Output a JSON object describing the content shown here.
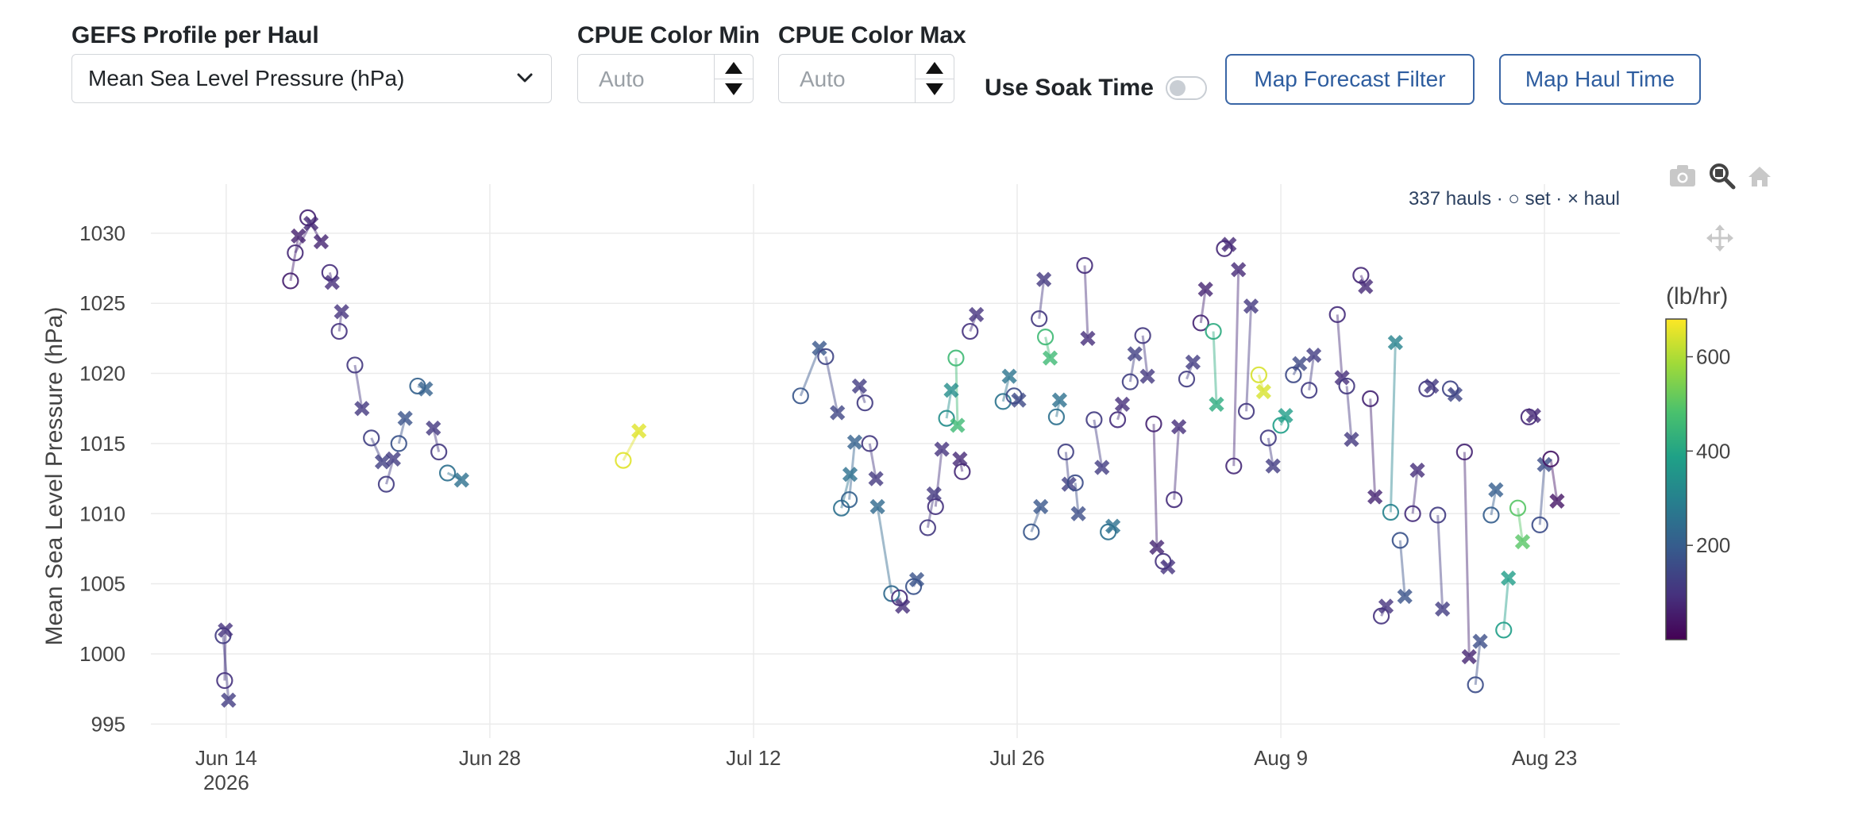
{
  "controls": {
    "profile_label": "GEFS Profile per Haul",
    "profile_value": "Mean Sea Level Pressure (hPa)",
    "cpue_min_label": "CPUE Color Min",
    "cpue_min_placeholder": "Auto",
    "cpue_max_label": "CPUE Color Max",
    "cpue_max_placeholder": "Auto",
    "soak_label": "Use Soak Time",
    "soak_on": false,
    "btn_forecast": "Map Forecast Filter",
    "btn_haul": "Map Haul Time"
  },
  "toolbar_icons": [
    "camera-icon",
    "zoom-icon",
    "home-icon",
    "pan-icon"
  ],
  "chart_data": {
    "type": "scatter",
    "annotation": "337 hauls · ○ set · × haul",
    "ylabel": "Mean Sea Level Pressure (hPa)",
    "xlabel": "",
    "ylim": [
      994,
      1033.5
    ],
    "xlim": [
      "2026-06-10",
      "2026-08-27"
    ],
    "x_ticks": [
      {
        "date": "2026-06-14",
        "label": "Jun 14",
        "sub": "2026"
      },
      {
        "date": "2026-06-28",
        "label": "Jun 28",
        "sub": ""
      },
      {
        "date": "2026-07-12",
        "label": "Jul 12",
        "sub": ""
      },
      {
        "date": "2026-07-26",
        "label": "Jul 26",
        "sub": ""
      },
      {
        "date": "2026-08-09",
        "label": "Aug 9",
        "sub": ""
      },
      {
        "date": "2026-08-23",
        "label": "Aug 23",
        "sub": ""
      }
    ],
    "y_ticks": [
      995,
      1000,
      1005,
      1010,
      1015,
      1020,
      1025,
      1030
    ],
    "grid": true,
    "colorbar": {
      "title": "(lb/hr)",
      "min": 0,
      "max": 680,
      "ticks": [
        200,
        400,
        600
      ],
      "colorscale": "viridis"
    },
    "marker_legend": {
      "set": "circle",
      "haul": "x"
    },
    "series": [
      {
        "set": [
          "2026-06-13T20:00",
          1001.3
        ],
        "haul": [
          "2026-06-14T03:00",
          996.7
        ],
        "cpue": 120
      },
      {
        "set": [
          "2026-06-13T22:00",
          998.1
        ],
        "haul": [
          "2026-06-13T23:00",
          1001.7
        ],
        "cpue": 100
      },
      {
        "set": [
          "2026-06-17T10:00",
          1026.6
        ],
        "haul": [
          "2026-06-17T20:00",
          1029.8
        ],
        "cpue": 60
      },
      {
        "set": [
          "2026-06-17T16:00",
          1028.6
        ],
        "haul": [
          "2026-06-18T12:00",
          1030.7
        ],
        "cpue": 80
      },
      {
        "set": [
          "2026-06-18T08:00",
          1031.1
        ],
        "haul": [
          "2026-06-19T01:00",
          1029.4
        ],
        "cpue": 70
      },
      {
        "set": [
          "2026-06-19T12:00",
          1027.2
        ],
        "haul": [
          "2026-06-19T15:00",
          1026.5
        ],
        "cpue": 90
      },
      {
        "set": [
          "2026-06-20T00:00",
          1023.0
        ],
        "haul": [
          "2026-06-20T03:00",
          1024.4
        ],
        "cpue": 100
      },
      {
        "set": [
          "2026-06-20T20:00",
          1020.6
        ],
        "haul": [
          "2026-06-21T05:00",
          1017.5
        ],
        "cpue": 110
      },
      {
        "set": [
          "2026-06-21T17:00",
          1015.4
        ],
        "haul": [
          "2026-06-22T07:00",
          1013.7
        ],
        "cpue": 130
      },
      {
        "set": [
          "2026-06-22T12:00",
          1012.1
        ],
        "haul": [
          "2026-06-22T21:00",
          1013.9
        ],
        "cpue": 120
      },
      {
        "set": [
          "2026-06-23T04:00",
          1015.0
        ],
        "haul": [
          "2026-06-23T12:00",
          1016.8
        ],
        "cpue": 170
      },
      {
        "set": [
          "2026-06-24T04:00",
          1019.1
        ],
        "haul": [
          "2026-06-24T14:00",
          1018.9
        ],
        "cpue": 210
      },
      {
        "set": [
          "2026-06-25T07:00",
          1014.4
        ],
        "haul": [
          "2026-06-25T00:00",
          1016.1
        ],
        "cpue": 110
      },
      {
        "set": [
          "2026-06-25T18:00",
          1012.9
        ],
        "haul": [
          "2026-06-26T12:00",
          1012.4
        ],
        "cpue": 250
      },
      {
        "set": [
          "2026-07-05T02:00",
          1013.8
        ],
        "haul": [
          "2026-07-05T22:00",
          1015.9
        ],
        "cpue": 650
      },
      {
        "set": [
          "2026-07-14T12:00",
          1018.4
        ],
        "haul": [
          "2026-07-15T12:00",
          1021.8
        ],
        "cpue": 180
      },
      {
        "set": [
          "2026-07-15T20:00",
          1021.2
        ],
        "haul": [
          "2026-07-16T11:00",
          1017.2
        ],
        "cpue": 140
      },
      {
        "set": [
          "2026-07-16T16:00",
          1010.4
        ],
        "haul": [
          "2026-07-17T03:00",
          1012.8
        ],
        "cpue": 250
      },
      {
        "set": [
          "2026-07-17T02:00",
          1011.0
        ],
        "haul": [
          "2026-07-17T09:00",
          1015.1
        ],
        "cpue": 210
      },
      {
        "set": [
          "2026-07-17T22:00",
          1017.9
        ],
        "haul": [
          "2026-07-17T15:00",
          1019.1
        ],
        "cpue": 120
      },
      {
        "set": [
          "2026-07-18T04:00",
          1015.0
        ],
        "haul": [
          "2026-07-18T12:00",
          1012.5
        ],
        "cpue": 110
      },
      {
        "set": [
          "2026-07-19T08:00",
          1004.3
        ],
        "haul": [
          "2026-07-18T14:00",
          1010.5
        ],
        "cpue": 230
      },
      {
        "set": [
          "2026-07-19T18:00",
          1004.0
        ],
        "haul": [
          "2026-07-19T22:00",
          1003.4
        ],
        "cpue": 90
      },
      {
        "set": [
          "2026-07-20T12:00",
          1004.8
        ],
        "haul": [
          "2026-07-20T16:00",
          1005.3
        ],
        "cpue": 170
      },
      {
        "set": [
          "2026-07-21T06:00",
          1009.0
        ],
        "haul": [
          "2026-07-21T14:00",
          1011.4
        ],
        "cpue": 110
      },
      {
        "set": [
          "2026-07-21T16:00",
          1010.5
        ],
        "haul": [
          "2026-07-22T00:00",
          1014.6
        ],
        "cpue": 100
      },
      {
        "set": [
          "2026-07-22T06:00",
          1016.8
        ],
        "haul": [
          "2026-07-22T12:00",
          1018.8
        ],
        "cpue": 330
      },
      {
        "set": [
          "2026-07-22T18:00",
          1021.1
        ],
        "haul": [
          "2026-07-22T20:00",
          1016.3
        ],
        "cpue": 460
      },
      {
        "set": [
          "2026-07-23T02:00",
          1013.0
        ],
        "haul": [
          "2026-07-22T23:00",
          1013.9
        ],
        "cpue": 80
      },
      {
        "set": [
          "2026-07-23T12:00",
          1023.0
        ],
        "haul": [
          "2026-07-23T20:00",
          1024.2
        ],
        "cpue": 100
      },
      {
        "set": [
          "2026-07-25T06:00",
          1018.0
        ],
        "haul": [
          "2026-07-25T14:00",
          1019.8
        ],
        "cpue": 260
      },
      {
        "set": [
          "2026-07-25T20:00",
          1018.4
        ],
        "haul": [
          "2026-07-26T02:00",
          1018.1
        ],
        "cpue": 150
      },
      {
        "set": [
          "2026-07-26T18:00",
          1008.7
        ],
        "haul": [
          "2026-07-27T06:00",
          1010.5
        ],
        "cpue": 180
      },
      {
        "set": [
          "2026-07-27T04:00",
          1023.9
        ],
        "haul": [
          "2026-07-27T10:00",
          1026.7
        ],
        "cpue": 110
      },
      {
        "set": [
          "2026-07-27T12:00",
          1022.6
        ],
        "haul": [
          "2026-07-27T18:00",
          1021.1
        ],
        "cpue": 460
      },
      {
        "set": [
          "2026-07-28T02:00",
          1016.9
        ],
        "haul": [
          "2026-07-28T06:00",
          1018.1
        ],
        "cpue": 250
      },
      {
        "set": [
          "2026-07-28T14:00",
          1014.4
        ],
        "haul": [
          "2026-07-28T18:00",
          1012.1
        ],
        "cpue": 130
      },
      {
        "set": [
          "2026-07-29T02:00",
          1012.2
        ],
        "haul": [
          "2026-07-29T06:00",
          1010.0
        ],
        "cpue": 160
      },
      {
        "set": [
          "2026-07-29T14:00",
          1027.7
        ],
        "haul": [
          "2026-07-29T18:00",
          1022.5
        ],
        "cpue": 90
      },
      {
        "set": [
          "2026-07-30T02:00",
          1016.7
        ],
        "haul": [
          "2026-07-30T12:00",
          1013.3
        ],
        "cpue": 120
      },
      {
        "set": [
          "2026-07-30T20:00",
          1008.7
        ],
        "haul": [
          "2026-07-31T02:00",
          1009.1
        ],
        "cpue": 250
      },
      {
        "set": [
          "2026-07-31T08:00",
          1016.7
        ],
        "haul": [
          "2026-07-31T14:00",
          1017.8
        ],
        "cpue": 90
      },
      {
        "set": [
          "2026-08-01T00:00",
          1019.4
        ],
        "haul": [
          "2026-08-01T06:00",
          1021.4
        ],
        "cpue": 130
      },
      {
        "set": [
          "2026-08-01T16:00",
          1022.7
        ],
        "haul": [
          "2026-08-01T22:00",
          1019.8
        ],
        "cpue": 110
      },
      {
        "set": [
          "2026-08-02T06:00",
          1016.4
        ],
        "haul": [
          "2026-08-02T10:00",
          1007.6
        ],
        "cpue": 70
      },
      {
        "set": [
          "2026-08-02T18:00",
          1006.6
        ],
        "haul": [
          "2026-08-03T00:00",
          1006.2
        ],
        "cpue": 100
      },
      {
        "set": [
          "2026-08-03T08:00",
          1011.0
        ],
        "haul": [
          "2026-08-03T14:00",
          1016.2
        ],
        "cpue": 90
      },
      {
        "set": [
          "2026-08-04T00:00",
          1019.6
        ],
        "haul": [
          "2026-08-04T08:00",
          1020.8
        ],
        "cpue": 120
      },
      {
        "set": [
          "2026-08-04T18:00",
          1023.6
        ],
        "haul": [
          "2026-08-05T00:00",
          1026.0
        ],
        "cpue": 70
      },
      {
        "set": [
          "2026-08-05T10:00",
          1023.0
        ],
        "haul": [
          "2026-08-05T14:00",
          1017.8
        ],
        "cpue": 420
      },
      {
        "set": [
          "2026-08-06T00:00",
          1028.9
        ],
        "haul": [
          "2026-08-06T06:00",
          1029.2
        ],
        "cpue": 80
      },
      {
        "set": [
          "2026-08-06T12:00",
          1013.4
        ],
        "haul": [
          "2026-08-06T18:00",
          1027.4
        ],
        "cpue": 80
      },
      {
        "set": [
          "2026-08-07T04:00",
          1017.3
        ],
        "haul": [
          "2026-08-07T10:00",
          1024.8
        ],
        "cpue": 110
      },
      {
        "set": [
          "2026-08-07T20:00",
          1019.9
        ],
        "haul": [
          "2026-08-08T02:00",
          1018.7
        ],
        "cpue": 640
      },
      {
        "set": [
          "2026-08-08T08:00",
          1015.4
        ],
        "haul": [
          "2026-08-08T14:00",
          1013.4
        ],
        "cpue": 120
      },
      {
        "set": [
          "2026-08-09T00:00",
          1016.3
        ],
        "haul": [
          "2026-08-09T06:00",
          1017.0
        ],
        "cpue": 380
      },
      {
        "set": [
          "2026-08-09T16:00",
          1019.9
        ],
        "haul": [
          "2026-08-10T00:00",
          1020.7
        ],
        "cpue": 150
      },
      {
        "set": [
          "2026-08-10T12:00",
          1018.8
        ],
        "haul": [
          "2026-08-10T18:00",
          1021.3
        ],
        "cpue": 120
      },
      {
        "set": [
          "2026-08-12T00:00",
          1024.2
        ],
        "haul": [
          "2026-08-12T06:00",
          1019.7
        ],
        "cpue": 90
      },
      {
        "set": [
          "2026-08-12T12:00",
          1019.1
        ],
        "haul": [
          "2026-08-12T18:00",
          1015.3
        ],
        "cpue": 110
      },
      {
        "set": [
          "2026-08-13T06:00",
          1027.0
        ],
        "haul": [
          "2026-08-13T12:00",
          1026.2
        ],
        "cpue": 80
      },
      {
        "set": [
          "2026-08-13T18:00",
          1018.2
        ],
        "haul": [
          "2026-08-14T00:00",
          1011.2
        ],
        "cpue": 70
      },
      {
        "set": [
          "2026-08-14T08:00",
          1002.7
        ],
        "haul": [
          "2026-08-14T14:00",
          1003.4
        ],
        "cpue": 100
      },
      {
        "set": [
          "2026-08-14T20:00",
          1010.1
        ],
        "haul": [
          "2026-08-15T02:00",
          1022.2
        ],
        "cpue": 300
      },
      {
        "set": [
          "2026-08-15T08:00",
          1008.1
        ],
        "haul": [
          "2026-08-15T14:00",
          1004.1
        ],
        "cpue": 170
      },
      {
        "set": [
          "2026-08-16T00:00",
          1010.0
        ],
        "haul": [
          "2026-08-16T06:00",
          1013.1
        ],
        "cpue": 90
      },
      {
        "set": [
          "2026-08-16T18:00",
          1018.9
        ],
        "haul": [
          "2026-08-17T00:00",
          1019.1
        ],
        "cpue": 110
      },
      {
        "set": [
          "2026-08-17T08:00",
          1009.9
        ],
        "haul": [
          "2026-08-17T14:00",
          1003.2
        ],
        "cpue": 120
      },
      {
        "set": [
          "2026-08-18T00:00",
          1018.9
        ],
        "haul": [
          "2026-08-18T06:00",
          1018.5
        ],
        "cpue": 140
      },
      {
        "set": [
          "2026-08-18T18:00",
          1014.4
        ],
        "haul": [
          "2026-08-19T00:00",
          999.8
        ],
        "cpue": 70
      },
      {
        "set": [
          "2026-08-19T08:00",
          997.8
        ],
        "haul": [
          "2026-08-19T14:00",
          1000.9
        ],
        "cpue": 160
      },
      {
        "set": [
          "2026-08-20T04:00",
          1009.9
        ],
        "haul": [
          "2026-08-20T10:00",
          1011.7
        ],
        "cpue": 200
      },
      {
        "set": [
          "2026-08-20T20:00",
          1001.7
        ],
        "haul": [
          "2026-08-21T02:00",
          1005.4
        ],
        "cpue": 380
      },
      {
        "set": [
          "2026-08-21T14:00",
          1010.4
        ],
        "haul": [
          "2026-08-21T20:00",
          1008.0
        ],
        "cpue": 500
      },
      {
        "set": [
          "2026-08-22T04:00",
          1016.9
        ],
        "haul": [
          "2026-08-22T10:00",
          1017.0
        ],
        "cpue": 80
      },
      {
        "set": [
          "2026-08-22T18:00",
          1009.2
        ],
        "haul": [
          "2026-08-23T00:00",
          1013.5
        ],
        "cpue": 160
      },
      {
        "set": [
          "2026-08-23T08:00",
          1013.9
        ],
        "haul": [
          "2026-08-23T16:00",
          1010.9
        ],
        "cpue": 40
      }
    ]
  }
}
